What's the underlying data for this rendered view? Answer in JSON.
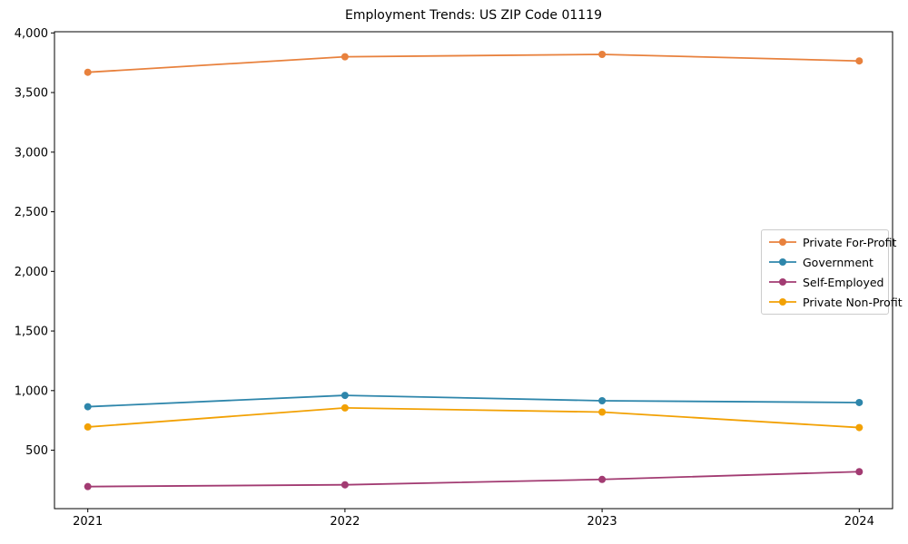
{
  "chart_data": {
    "type": "line",
    "title": "Employment Trends: US ZIP Code 01119",
    "x": [
      "2021",
      "2022",
      "2023",
      "2024"
    ],
    "xlabel": "",
    "ylabel": "",
    "ylim": [
      0,
      4000
    ],
    "yticks": [
      500,
      1000,
      1500,
      2000,
      2500,
      3000,
      3500,
      4000
    ],
    "ytick_labels": [
      "500",
      "1,000",
      "1,500",
      "2,000",
      "2,500",
      "3,000",
      "3,500",
      "4,000"
    ],
    "grid": false,
    "marker": "o",
    "legend_position": "center right",
    "series": [
      {
        "name": "Private For-Profit",
        "color": "#E8813D",
        "values": [
          3670,
          3800,
          3820,
          3765
        ]
      },
      {
        "name": "Government",
        "color": "#2E86AB",
        "values": [
          865,
          960,
          915,
          900
        ]
      },
      {
        "name": "Self-Employed",
        "color": "#A23B72",
        "values": [
          195,
          210,
          255,
          320
        ]
      },
      {
        "name": "Private Non-Profit",
        "color": "#F2A104",
        "values": [
          695,
          855,
          820,
          690
        ]
      }
    ]
  }
}
